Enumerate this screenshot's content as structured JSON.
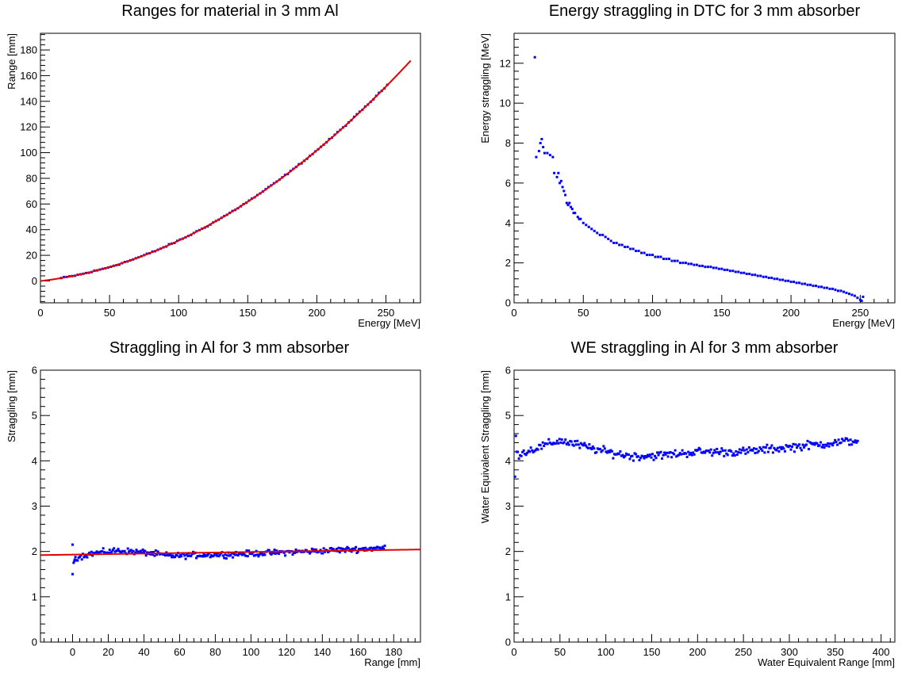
{
  "chart_data": [
    {
      "id": "p1",
      "type": "scatter",
      "title": "Ranges for material in 3 mm Al",
      "xlabel": "Energy [MeV]",
      "ylabel": "Range [mm]",
      "xlim": [
        0,
        275
      ],
      "ylim": [
        -17,
        193
      ],
      "xticks": [
        0,
        50,
        100,
        150,
        200,
        250
      ],
      "yticks": [
        0,
        20,
        40,
        60,
        80,
        100,
        120,
        140,
        160,
        180
      ],
      "marker_color": "#0000ff",
      "fit_color": "#e00000",
      "points_model": {
        "form": "a*E + b*E^2",
        "a": 0.121,
        "b": 0.00194,
        "x_from": 15,
        "x_to": 252,
        "x_step": 2,
        "noise": 0.6
      },
      "fit_model": {
        "form": "a*E + b*E^2",
        "a": 0.121,
        "b": 0.00194,
        "x_from": 0,
        "x_to": 268
      }
    },
    {
      "id": "p2",
      "type": "scatter",
      "title": "Energy straggling in DTC for 3 mm absorber",
      "xlabel": "Energy [MeV]",
      "ylabel": "Energy straggling [MeV]",
      "xlim": [
        0,
        275
      ],
      "ylim": [
        0,
        13.5
      ],
      "xticks": [
        0,
        50,
        100,
        150,
        200,
        250
      ],
      "yticks": [
        0,
        2,
        4,
        6,
        8,
        10,
        12
      ],
      "marker_color": "#0000ff",
      "points": [
        [
          15,
          12.3
        ],
        [
          16,
          7.3
        ],
        [
          18,
          7.6
        ],
        [
          19,
          8.0
        ],
        [
          20,
          8.2
        ],
        [
          21,
          7.8
        ],
        [
          22,
          7.5
        ],
        [
          24,
          7.5
        ],
        [
          26,
          7.4
        ],
        [
          28,
          7.3
        ],
        [
          29,
          6.5
        ],
        [
          31,
          6.3
        ],
        [
          32,
          6.5
        ],
        [
          33,
          6.0
        ],
        [
          34,
          6.1
        ],
        [
          35,
          5.8
        ],
        [
          36,
          5.6
        ],
        [
          37,
          5.4
        ],
        [
          38,
          5.0
        ],
        [
          39,
          4.9
        ],
        [
          40,
          5.0
        ],
        [
          41,
          4.8
        ],
        [
          42,
          4.7
        ],
        [
          43,
          4.5
        ],
        [
          44,
          4.5
        ],
        [
          46,
          4.3
        ],
        [
          47,
          4.2
        ],
        [
          48,
          4.2
        ],
        [
          50,
          4.0
        ],
        [
          52,
          3.9
        ],
        [
          54,
          3.8
        ],
        [
          56,
          3.7
        ],
        [
          58,
          3.6
        ],
        [
          60,
          3.5
        ],
        [
          62,
          3.4
        ],
        [
          64,
          3.4
        ],
        [
          66,
          3.3
        ],
        [
          68,
          3.2
        ],
        [
          70,
          3.1
        ],
        [
          72,
          3.0
        ],
        [
          74,
          3.0
        ],
        [
          76,
          2.9
        ],
        [
          78,
          2.9
        ],
        [
          80,
          2.8
        ],
        [
          82,
          2.8
        ],
        [
          84,
          2.7
        ],
        [
          86,
          2.7
        ],
        [
          88,
          2.6
        ],
        [
          90,
          2.6
        ],
        [
          92,
          2.5
        ],
        [
          94,
          2.5
        ],
        [
          96,
          2.4
        ],
        [
          98,
          2.4
        ],
        [
          100,
          2.4
        ],
        [
          102,
          2.3
        ],
        [
          104,
          2.3
        ],
        [
          106,
          2.3
        ],
        [
          108,
          2.2
        ],
        [
          110,
          2.2
        ],
        [
          112,
          2.2
        ],
        [
          114,
          2.1
        ],
        [
          116,
          2.1
        ],
        [
          118,
          2.1
        ],
        [
          120,
          2.0
        ],
        [
          122,
          2.0
        ],
        [
          124,
          2.0
        ],
        [
          126,
          1.95
        ],
        [
          128,
          1.95
        ],
        [
          130,
          1.9
        ],
        [
          132,
          1.9
        ],
        [
          134,
          1.85
        ],
        [
          136,
          1.85
        ],
        [
          138,
          1.8
        ],
        [
          140,
          1.8
        ],
        [
          142,
          1.8
        ],
        [
          144,
          1.75
        ],
        [
          146,
          1.75
        ],
        [
          148,
          1.7
        ],
        [
          150,
          1.7
        ],
        [
          152,
          1.65
        ],
        [
          154,
          1.65
        ],
        [
          156,
          1.6
        ],
        [
          158,
          1.6
        ],
        [
          160,
          1.55
        ],
        [
          162,
          1.55
        ],
        [
          164,
          1.5
        ],
        [
          166,
          1.5
        ],
        [
          168,
          1.45
        ],
        [
          170,
          1.45
        ],
        [
          172,
          1.4
        ],
        [
          174,
          1.4
        ],
        [
          176,
          1.35
        ],
        [
          178,
          1.35
        ],
        [
          180,
          1.3
        ],
        [
          182,
          1.3
        ],
        [
          184,
          1.25
        ],
        [
          186,
          1.25
        ],
        [
          188,
          1.2
        ],
        [
          190,
          1.2
        ],
        [
          192,
          1.15
        ],
        [
          194,
          1.15
        ],
        [
          196,
          1.1
        ],
        [
          198,
          1.1
        ],
        [
          200,
          1.05
        ],
        [
          202,
          1.05
        ],
        [
          204,
          1.0
        ],
        [
          206,
          1.0
        ],
        [
          208,
          0.95
        ],
        [
          210,
          0.95
        ],
        [
          212,
          0.9
        ],
        [
          214,
          0.9
        ],
        [
          216,
          0.85
        ],
        [
          218,
          0.85
        ],
        [
          220,
          0.8
        ],
        [
          222,
          0.8
        ],
        [
          224,
          0.75
        ],
        [
          226,
          0.75
        ],
        [
          228,
          0.7
        ],
        [
          230,
          0.7
        ],
        [
          232,
          0.65
        ],
        [
          234,
          0.6
        ],
        [
          236,
          0.6
        ],
        [
          238,
          0.55
        ],
        [
          240,
          0.5
        ],
        [
          242,
          0.45
        ],
        [
          244,
          0.4
        ],
        [
          246,
          0.35
        ],
        [
          248,
          0.25
        ],
        [
          250,
          0.15
        ],
        [
          251,
          0.1
        ],
        [
          252,
          0.3
        ]
      ]
    },
    {
      "id": "p3",
      "type": "scatter",
      "title": "Straggling in Al for 3 mm absorber",
      "xlabel": "Range [mm]",
      "ylabel": "Straggling [mm]",
      "xlim": [
        -18,
        195
      ],
      "ylim": [
        0,
        6
      ],
      "xticks": [
        0,
        20,
        40,
        60,
        80,
        100,
        120,
        140,
        160,
        180
      ],
      "yticks": [
        0,
        1,
        2,
        3,
        4,
        5,
        6
      ],
      "marker_color": "#0000ff",
      "fit_color": "#e00000",
      "special_points": [
        [
          0,
          2.15
        ],
        [
          0,
          1.5
        ],
        [
          0.6,
          1.75
        ],
        [
          1.2,
          1.82
        ]
      ],
      "points_model": {
        "form": "trend",
        "knots": [
          [
            1,
            1.85
          ],
          [
            10,
            1.95
          ],
          [
            25,
            2.02
          ],
          [
            40,
            1.98
          ],
          [
            55,
            1.9
          ],
          [
            70,
            1.92
          ],
          [
            100,
            1.95
          ],
          [
            130,
            2.0
          ],
          [
            160,
            2.05
          ],
          [
            175,
            2.08
          ]
        ],
        "x_from": 1,
        "x_to": 175,
        "x_step": 0.6,
        "noise": 0.07
      },
      "fit_model": {
        "form": "a + b*x",
        "a": 1.93,
        "b": 0.00058,
        "x_from": -18,
        "x_to": 195
      }
    },
    {
      "id": "p4",
      "type": "scatter",
      "title": "WE straggling in Al for 3 mm absorber",
      "xlabel": "Water Equivalent Range [mm]",
      "ylabel": "Water Equivalent Straggling [mm]",
      "xlim": [
        0,
        415
      ],
      "ylim": [
        0,
        6
      ],
      "xticks": [
        0,
        50,
        100,
        150,
        200,
        250,
        300,
        350,
        400
      ],
      "yticks": [
        0,
        1,
        2,
        3,
        4,
        5,
        6
      ],
      "marker_color": "#0000ff",
      "special_points": [
        [
          1,
          3.65
        ],
        [
          2,
          4.55
        ],
        [
          3,
          4.2
        ]
      ],
      "points_model": {
        "form": "trend",
        "knots": [
          [
            4,
            4.15
          ],
          [
            20,
            4.25
          ],
          [
            50,
            4.45
          ],
          [
            80,
            4.3
          ],
          [
            100,
            4.2
          ],
          [
            130,
            4.1
          ],
          [
            160,
            4.12
          ],
          [
            200,
            4.2
          ],
          [
            250,
            4.2
          ],
          [
            300,
            4.3
          ],
          [
            350,
            4.4
          ],
          [
            375,
            4.45
          ]
        ],
        "x_from": 4,
        "x_to": 375,
        "x_step": 1.3,
        "noise": 0.1
      }
    }
  ]
}
